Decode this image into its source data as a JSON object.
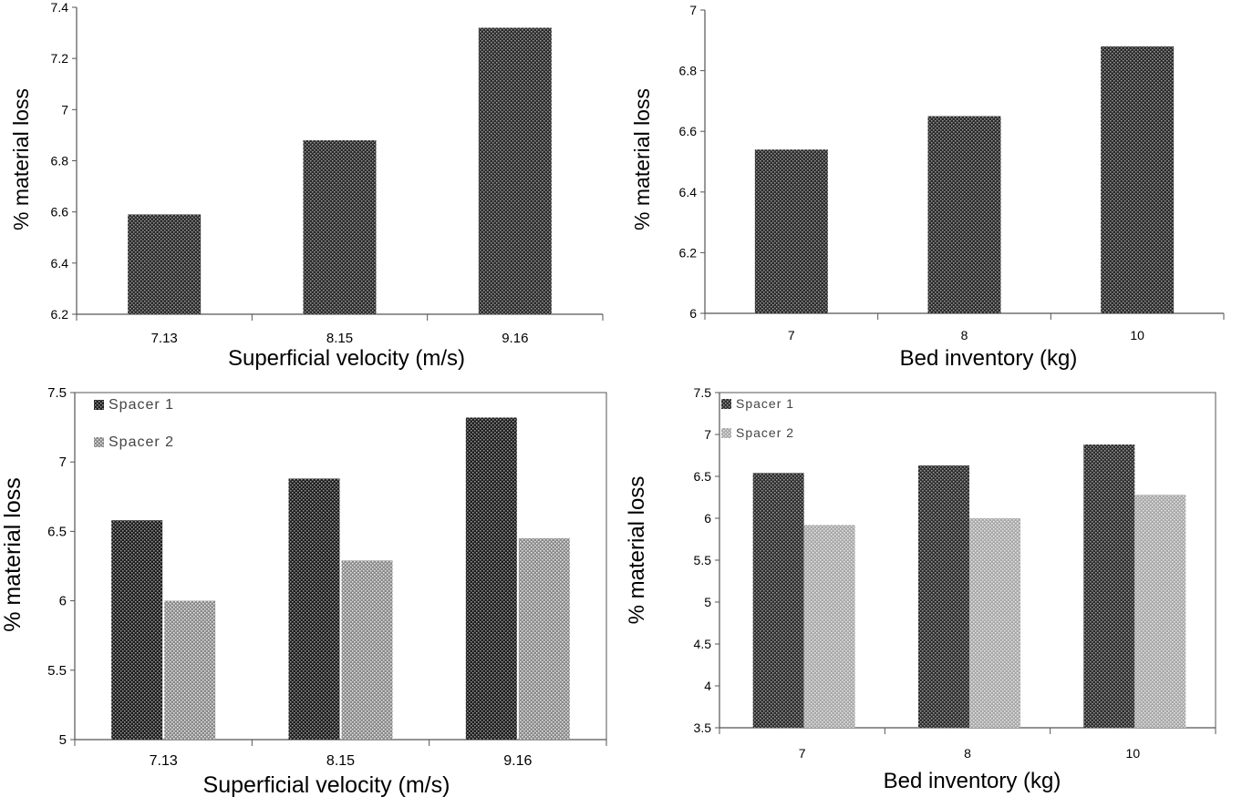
{
  "chart_data": [
    {
      "type": "bar",
      "categories": [
        "7.13",
        "8.15",
        "9.16"
      ],
      "series": [
        {
          "values": [
            6.59,
            6.88,
            7.32
          ]
        }
      ],
      "xlabel": "Superficial velocity (m/s)",
      "ylabel": "% material loss",
      "ylim": [
        6.2,
        7.4
      ],
      "yticks": [
        "6.2",
        "6.4",
        "6.6",
        "6.8",
        "7",
        "7.2",
        "7.4"
      ],
      "legend": "none",
      "colors": {
        "series1": "#2b2b2b"
      }
    },
    {
      "type": "bar",
      "categories": [
        "7",
        "8",
        "10"
      ],
      "series": [
        {
          "values": [
            6.54,
            6.65,
            6.88
          ]
        }
      ],
      "xlabel": "Bed inventory (kg)",
      "ylabel": "% material loss",
      "ylim": [
        6,
        7
      ],
      "yticks": [
        "6",
        "6.2",
        "6.4",
        "6.6",
        "6.8",
        "7"
      ],
      "legend": "none",
      "colors": {
        "series1": "#2b2b2b"
      }
    },
    {
      "type": "bar",
      "categories": [
        "7.13",
        "8.15",
        "9.16"
      ],
      "series": [
        {
          "name": "Spacer 1",
          "values": [
            6.58,
            6.88,
            7.32
          ]
        },
        {
          "name": "Spacer 2",
          "values": [
            6.0,
            6.29,
            6.45
          ]
        }
      ],
      "xlabel": "Superficial velocity (m/s)",
      "ylabel": "% material loss",
      "ylim": [
        5,
        7.5
      ],
      "yticks": [
        "5",
        "5.5",
        "6",
        "6.5",
        "7",
        "7.5"
      ],
      "legend": "top-left",
      "colors": {
        "series1": "#1e1e1e",
        "series2": "#8a8a8a"
      }
    },
    {
      "type": "bar",
      "categories": [
        "7",
        "8",
        "10"
      ],
      "series": [
        {
          "name": "Spacer 1",
          "values": [
            6.54,
            6.63,
            6.88
          ]
        },
        {
          "name": "Spacer 2",
          "values": [
            5.92,
            6.0,
            6.28
          ]
        }
      ],
      "xlabel": "Bed inventory (kg)",
      "ylabel": "% material loss",
      "ylim": [
        3.5,
        7.5
      ],
      "yticks": [
        "3.5",
        "4",
        "4.5",
        "5",
        "5.5",
        "6",
        "6.5",
        "7",
        "7.5"
      ],
      "legend": "top-left",
      "colors": {
        "series1": "#2e2e2e",
        "series2": "#a8a8a8"
      }
    }
  ]
}
